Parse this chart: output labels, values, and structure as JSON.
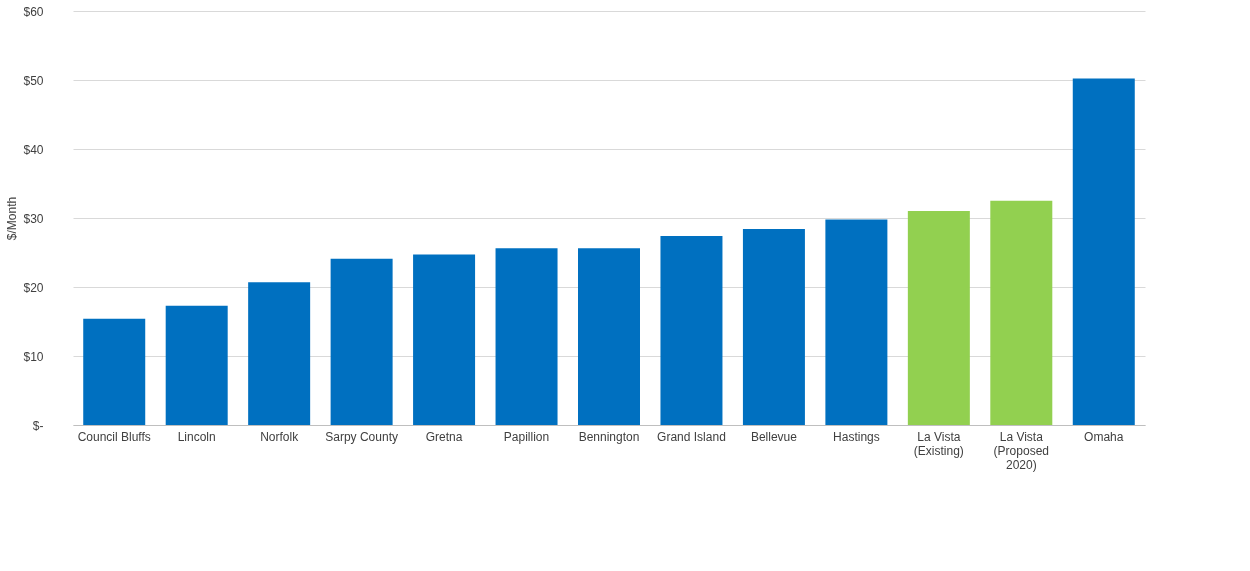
{
  "chart_data": {
    "type": "bar",
    "ylabel": "$/Month",
    "categories": [
      "Council Bluffs",
      "Lincoln",
      "Norfolk",
      "Sarpy County",
      "Gretna",
      "Papillion",
      "Bennington",
      "Grand Island",
      "Bellevue",
      "Hastings",
      "La Vista\n(Existing)",
      "La Vista\n(Proposed\n2020)",
      "Omaha"
    ],
    "values": [
      15.4,
      17.3,
      20.7,
      24.1,
      24.7,
      25.6,
      25.6,
      27.4,
      28.4,
      29.8,
      31.0,
      32.5,
      50.2
    ],
    "colors": [
      "#0070c0",
      "#0070c0",
      "#0070c0",
      "#0070c0",
      "#0070c0",
      "#0070c0",
      "#0070c0",
      "#0070c0",
      "#0070c0",
      "#0070c0",
      "#92d050",
      "#92d050",
      "#0070c0"
    ],
    "ylim": [
      0,
      60
    ],
    "yticks": [
      {
        "value": 0,
        "label": "$-"
      },
      {
        "value": 10,
        "label": "$10"
      },
      {
        "value": 20,
        "label": "$20"
      },
      {
        "value": 30,
        "label": "$30"
      },
      {
        "value": 40,
        "label": "$40"
      },
      {
        "value": 50,
        "label": "$50"
      },
      {
        "value": 60,
        "label": "$60"
      }
    ],
    "grid": "y"
  }
}
